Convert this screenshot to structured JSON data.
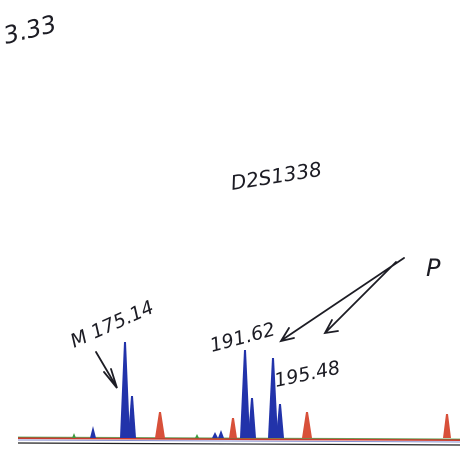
{
  "annotations": {
    "corner_value": "3.33",
    "marker_name": "D2S1338",
    "mother_label": "M 175.14",
    "peak_label_1": "191.62",
    "peak_label_2": "195.48",
    "paternal_label": "P"
  },
  "colors": {
    "ink": "#1c1c24",
    "blue_dye": "#2233aa",
    "red_dye": "#d8503a",
    "green_dye": "#3f9a40",
    "baseline_red": "#cc3a2e"
  }
}
